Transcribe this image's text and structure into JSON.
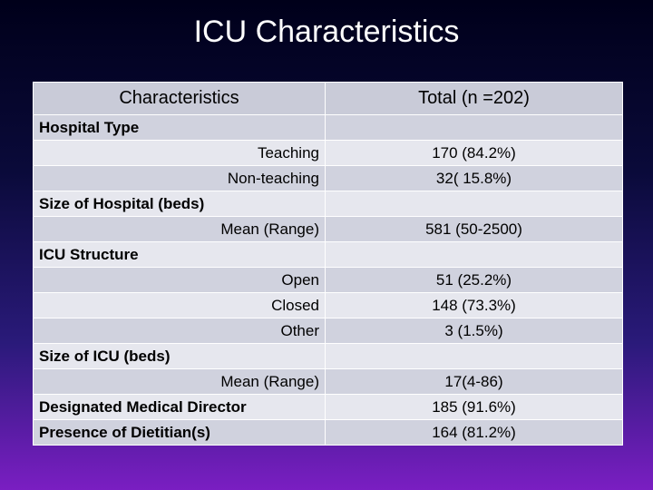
{
  "title": "ICU Characteristics",
  "table": {
    "headers": [
      "Characteristics",
      "Total (n =202)"
    ],
    "rows": [
      {
        "label": "Hospital Type",
        "value": "",
        "kind": "category"
      },
      {
        "label": "Teaching",
        "value": "170 (84.2%)",
        "kind": "sub"
      },
      {
        "label": "Non-teaching",
        "value": "32( 15.8%)",
        "kind": "sub"
      },
      {
        "label": "Size of Hospital (beds)",
        "value": "",
        "kind": "category"
      },
      {
        "label": "Mean (Range)",
        "value": "581 (50-2500)",
        "kind": "sub"
      },
      {
        "label": "ICU Structure",
        "value": "",
        "kind": "category"
      },
      {
        "label": "Open",
        "value": "51 (25.2%)",
        "kind": "sub"
      },
      {
        "label": "Closed",
        "value": "148 (73.3%)",
        "kind": "sub"
      },
      {
        "label": "Other",
        "value": "3 (1.5%)",
        "kind": "sub"
      },
      {
        "label": "Size of ICU (beds)",
        "value": "",
        "kind": "category"
      },
      {
        "label": "Mean (Range)",
        "value": "17(4-86)",
        "kind": "sub"
      },
      {
        "label": "Designated Medical Director",
        "value": "185 (91.6%)",
        "kind": "category"
      },
      {
        "label": "Presence of Dietitian(s)",
        "value": "164 (81.2%)",
        "kind": "category"
      }
    ]
  }
}
